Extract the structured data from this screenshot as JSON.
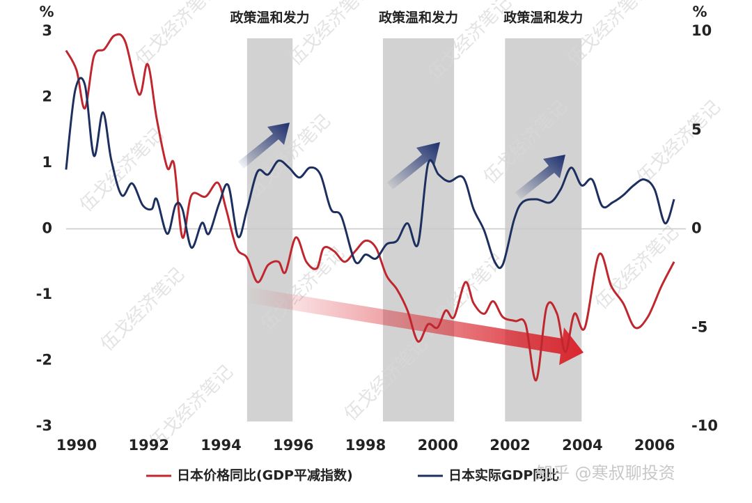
{
  "chart_data": {
    "type": "line",
    "left_unit": "%",
    "right_unit": "%",
    "xlim": [
      1989.5,
      2007
    ],
    "xticks": [
      1990,
      1992,
      1994,
      1996,
      1998,
      2000,
      2002,
      2004,
      2006
    ],
    "ylim": [
      -3,
      3
    ],
    "yticks": [
      3,
      2,
      1,
      0,
      -1,
      -2,
      -3
    ],
    "y2lim": [
      -10,
      10
    ],
    "y2ticks": [
      10,
      5,
      0,
      -5,
      -10
    ],
    "shaded_periods": [
      {
        "start": 1994.72,
        "end": 1995.98,
        "label": "政策温和发力"
      },
      {
        "start": 1998.48,
        "end": 2000.45,
        "label": "政策温和发力"
      },
      {
        "start": 2001.86,
        "end": 2003.98,
        "label": "政策温和发力"
      }
    ],
    "series": [
      {
        "name": "日本价格同比(GDP平减指数)",
        "color": "#c0262d",
        "x": [
          1989.71,
          1990.0,
          1990.23,
          1990.48,
          1990.77,
          1991.06,
          1991.35,
          1991.73,
          1991.97,
          1992.22,
          1992.51,
          1992.7,
          1992.93,
          1993.18,
          1993.57,
          1993.91,
          1994.14,
          1994.43,
          1994.72,
          1995.01,
          1995.3,
          1995.59,
          1995.78,
          1996.07,
          1996.36,
          1996.65,
          1996.84,
          1997.13,
          1997.42,
          1997.71,
          1998.0,
          1998.29,
          1998.58,
          1998.87,
          1999.16,
          1999.45,
          1999.73,
          1999.99,
          2000.22,
          2000.45,
          2000.76,
          2000.99,
          2001.28,
          2001.53,
          2001.8,
          2002.14,
          2002.43,
          2002.72,
          2003.01,
          2003.3,
          2003.53,
          2003.78,
          2004.07,
          2004.46,
          2004.8,
          2005.13,
          2005.46,
          2005.81,
          2006.19,
          2006.54
        ],
        "values": [
          2.71,
          2.41,
          1.83,
          2.62,
          2.73,
          2.94,
          2.84,
          2.04,
          2.5,
          1.67,
          0.93,
          0.98,
          -0.13,
          0.51,
          0.49,
          0.7,
          0.3,
          -0.29,
          -0.44,
          -0.81,
          -0.55,
          -0.5,
          -0.66,
          -0.13,
          -0.5,
          -0.6,
          -0.29,
          -0.34,
          -0.5,
          -0.34,
          -0.18,
          -0.29,
          -0.71,
          -0.92,
          -1.24,
          -1.71,
          -1.45,
          -1.5,
          -1.24,
          -1.34,
          -0.81,
          -1.13,
          -1.29,
          -1.1,
          -1.34,
          -1.4,
          -1.45,
          -2.3,
          -1.19,
          -1.29,
          -1.87,
          -1.29,
          -1.5,
          -0.39,
          -0.87,
          -1.13,
          -1.5,
          -1.34,
          -0.87,
          -0.5
        ]
      },
      {
        "name": "日本实际GDP同比",
        "color": "#1c2f5e",
        "axis": "y2",
        "x": [
          1989.71,
          1989.96,
          1990.23,
          1990.48,
          1990.73,
          1990.96,
          1991.25,
          1991.54,
          1991.83,
          1992.08,
          1992.22,
          1992.51,
          1992.74,
          1992.93,
          1993.18,
          1993.47,
          1993.66,
          1993.95,
          1994.2,
          1994.47,
          1994.72,
          1995.01,
          1995.3,
          1995.59,
          1995.88,
          1996.17,
          1996.46,
          1996.75,
          1997.04,
          1997.33,
          1997.71,
          1998.0,
          1998.29,
          1998.58,
          1998.87,
          1999.16,
          1999.45,
          1999.73,
          2000.02,
          2000.31,
          2000.7,
          2000.99,
          2001.28,
          2001.57,
          2001.8,
          2002.11,
          2002.34,
          2002.72,
          2003.11,
          2003.4,
          2003.69,
          2003.98,
          2004.27,
          2004.55,
          2004.84,
          2005.13,
          2005.42,
          2005.71,
          2006.0,
          2006.29,
          2006.54
        ],
        "values": [
          3.0,
          7.0,
          7.3,
          3.7,
          5.9,
          3.5,
          1.7,
          2.3,
          1.2,
          1.0,
          1.5,
          -0.25,
          1.2,
          1.0,
          -0.95,
          0.3,
          -0.25,
          1.3,
          2.2,
          -0.4,
          1.0,
          2.9,
          2.75,
          3.45,
          3.1,
          2.6,
          3.1,
          2.75,
          1.0,
          0.63,
          -1.65,
          -1.3,
          -1.5,
          -0.78,
          -0.6,
          0.28,
          -0.78,
          3.3,
          2.75,
          2.4,
          2.6,
          1.0,
          -0.07,
          -1.65,
          -1.8,
          0.46,
          1.34,
          1.5,
          1.34,
          2.0,
          3.1,
          2.2,
          2.5,
          1.15,
          1.34,
          1.7,
          2.2,
          2.5,
          2.0,
          0.28,
          1.5
        ]
      }
    ],
    "watermark": "伍戈经济笔记",
    "source_watermark": "知乎 @寒叔聊投资"
  }
}
